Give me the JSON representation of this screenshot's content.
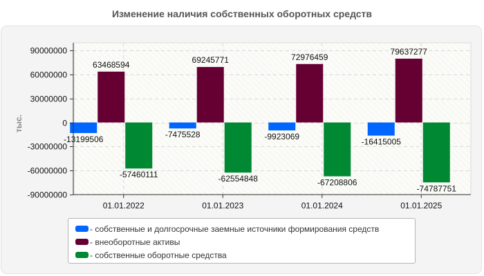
{
  "title": "Изменение наличия собственных оборотных средств",
  "colors": {
    "series1": "#0066ff",
    "series2": "#660033",
    "series3": "#008833"
  },
  "chart_data": {
    "type": "bar",
    "title": "Изменение наличия собственных оборотных средств",
    "xlabel": "",
    "ylabel": "тыс.",
    "ylim": [
      -90000000,
      90000000
    ],
    "yticks": [
      90000000,
      60000000,
      30000000,
      0,
      -30000000,
      -60000000,
      -90000000
    ],
    "ytick_labels": [
      "90000000",
      "60000000",
      "30000000",
      "0",
      "-30000000",
      "-60000000",
      "-90000000"
    ],
    "grid": true,
    "legend_position": "bottom",
    "categories": [
      "01.01.2022",
      "01.01.2023",
      "01.01.2024",
      "01.01.2025"
    ],
    "series": [
      {
        "name": "собственные и долгосрочные заемные источники формирования средств",
        "color": "#0066ff",
        "values": [
          -13199506,
          -7475528,
          -9923069,
          -16415005
        ]
      },
      {
        "name": "внеоборотные активы",
        "color": "#660033",
        "values": [
          63468594,
          69245771,
          72976459,
          79637277
        ]
      },
      {
        "name": "собственные оборотные средства",
        "color": "#008833",
        "values": [
          -57460111,
          -62554848,
          -67208806,
          -74787751
        ]
      }
    ]
  },
  "legend": {
    "items": [
      {
        "label": "- собственные и долгосрочные заемные источники формирования средств"
      },
      {
        "label": "- внеоборотные активы"
      },
      {
        "label": "- собственные оборотные средства"
      }
    ]
  }
}
